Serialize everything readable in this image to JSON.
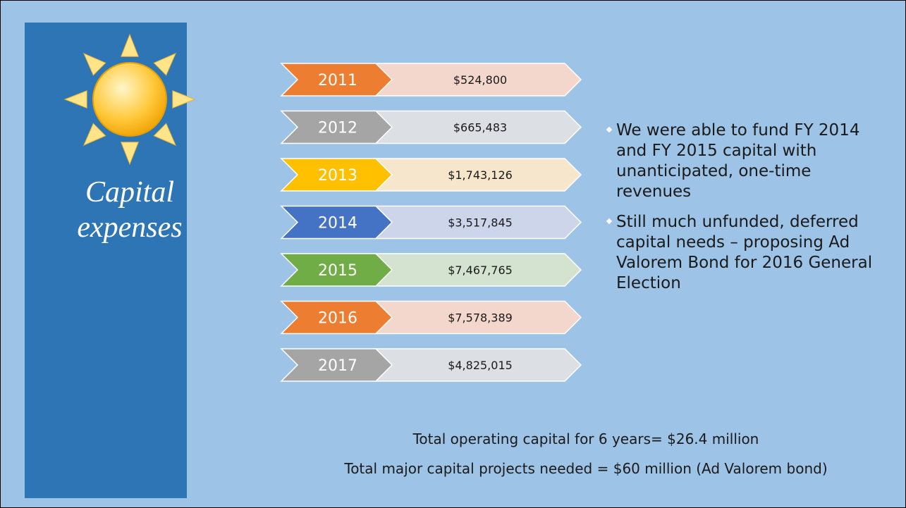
{
  "slide": {
    "title_lines": [
      "Capital",
      "expenses"
    ],
    "items": [
      {
        "year": "2011",
        "amount": "$524,800",
        "color": "#ed7d31",
        "light": "#f3d6cc"
      },
      {
        "year": "2012",
        "amount": "$665,483",
        "color": "#a5a5a5",
        "light": "#dcdfe4"
      },
      {
        "year": "2013",
        "amount": "$1,743,126",
        "color": "#ffc000",
        "light": "#f6e6cc"
      },
      {
        "year": "2014",
        "amount": "$3,517,845",
        "color": "#4472c4",
        "light": "#cdd5ea"
      },
      {
        "year": "2015",
        "amount": "$7,467,765",
        "color": "#70ad47",
        "light": "#d3e3d0"
      },
      {
        "year": "2016",
        "amount": "$7,578,389",
        "color": "#ed7d31",
        "light": "#f3d6cc"
      },
      {
        "year": "2017",
        "amount": "$4,825,015",
        "color": "#a5a5a5",
        "light": "#dcdfe4"
      }
    ],
    "bullets": [
      "We were able to fund FY 2014 and FY 2015 capital with unanticipated, one-time revenues",
      "Still much unfunded, deferred capital needs – proposing Ad Valorem Bond for 2016 General Election"
    ],
    "footer": [
      "Total operating capital for 6 years= $26.4 million",
      "Total major capital projects needed = $60 million (Ad Valorem bond)"
    ]
  }
}
